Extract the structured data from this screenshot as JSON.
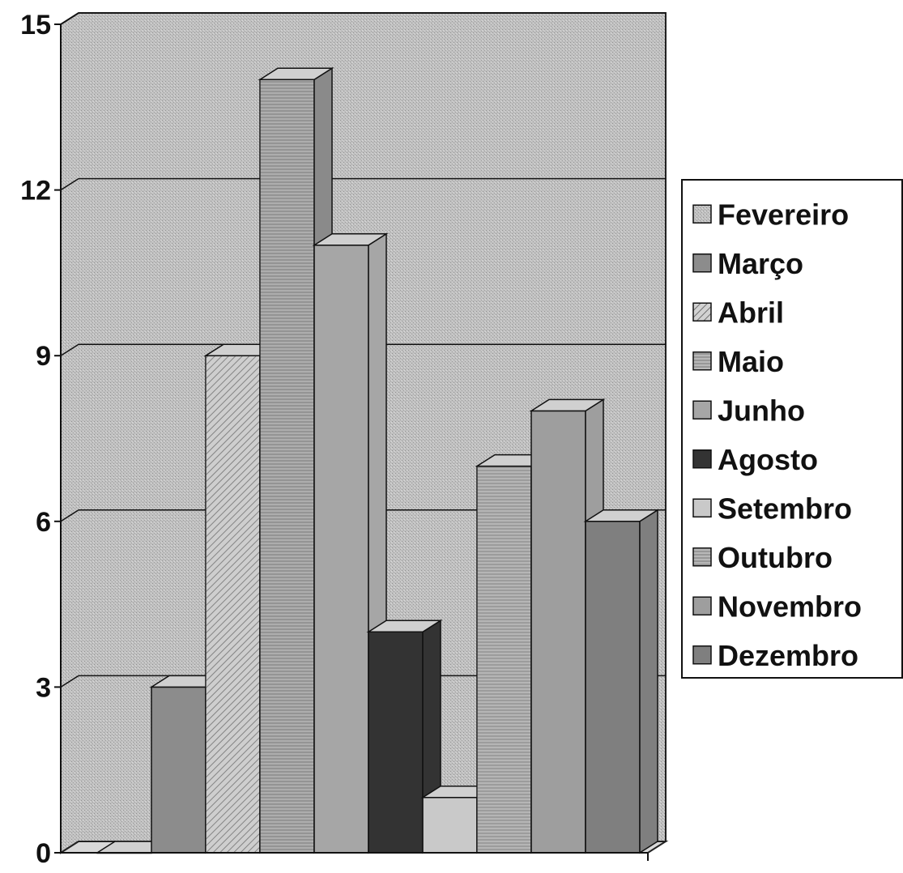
{
  "chart_data": {
    "type": "bar",
    "title": "",
    "xlabel": "",
    "ylabel": "",
    "ylim": [
      0,
      15
    ],
    "yticks": [
      0,
      3,
      6,
      9,
      12,
      15
    ],
    "grid": true,
    "legend_position": "right",
    "series": [
      {
        "name": "Fevereiro",
        "value": 0,
        "color": "#b5b5b5"
      },
      {
        "name": "Março",
        "value": 3,
        "color": "#8c8c8c"
      },
      {
        "name": "Abril",
        "value": 9,
        "color": "#c4c4c4"
      },
      {
        "name": "Maio",
        "value": 14,
        "color": "#8a8a8a"
      },
      {
        "name": "Junho",
        "value": 11,
        "color": "#a6a6a6"
      },
      {
        "name": "Agosto",
        "value": 4,
        "color": "#333333"
      },
      {
        "name": "Setembro",
        "value": 1,
        "color": "#c9c9c9"
      },
      {
        "name": "Outubro",
        "value": 7,
        "color": "#adadad"
      },
      {
        "name": "Novembro",
        "value": 8,
        "color": "#9e9e9e"
      },
      {
        "name": "Dezembro",
        "value": 6,
        "color": "#7f7f7f"
      }
    ]
  }
}
